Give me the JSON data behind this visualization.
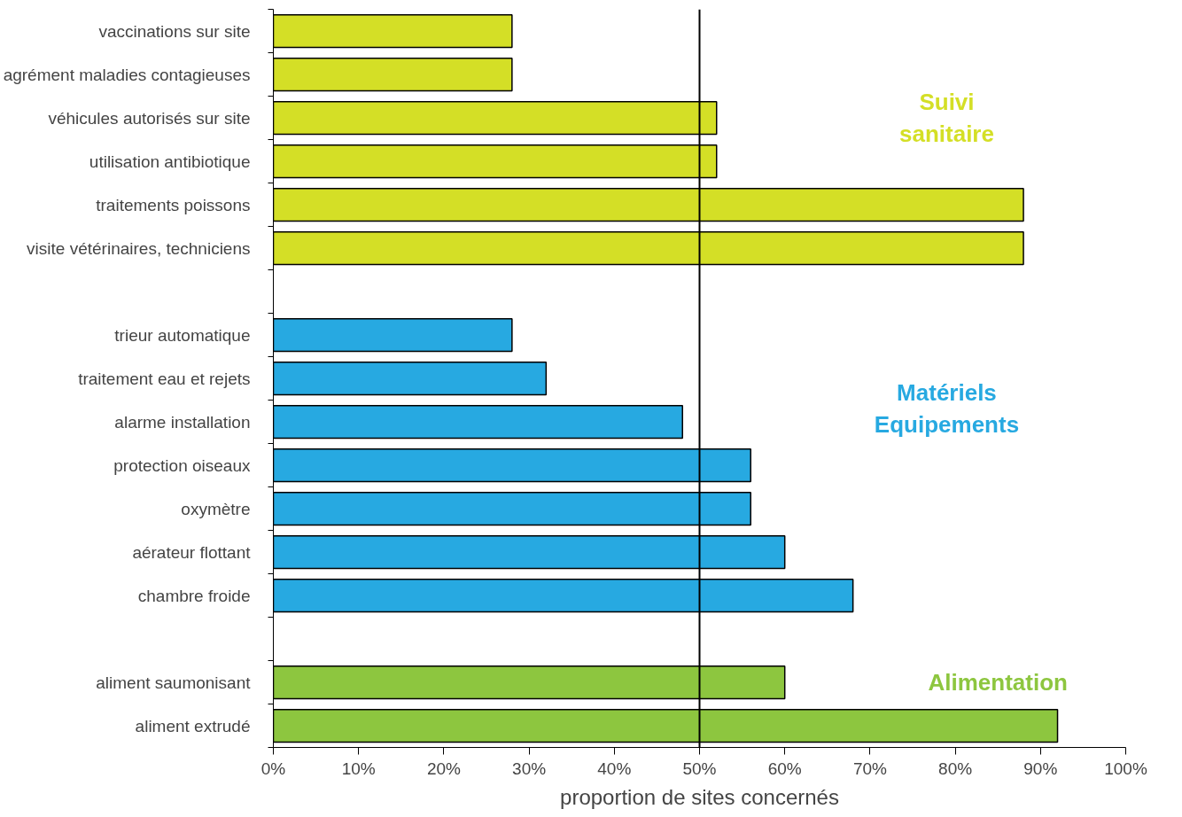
{
  "chart_data": {
    "type": "bar",
    "orientation": "horizontal",
    "xlabel": "proportion de sites concernés",
    "categories": [
      "vaccinations sur site",
      "agrément maladies contagieuses",
      "véhicules autorisés sur site",
      "utilisation antibiotique",
      "traitements poissons",
      "visite vétérinaires, techniciens",
      null,
      "trieur automatique",
      "traitement eau et rejets",
      "alarme installation",
      "protection oiseaux",
      "oxymètre",
      "aérateur flottant",
      "chambre froide",
      null,
      "aliment saumonisant",
      "aliment extrudé"
    ],
    "series": [
      {
        "name": "Suivi sanitaire",
        "color": "#d4df26",
        "values": [
          28,
          28,
          52,
          52,
          88,
          88,
          null,
          null,
          null,
          null,
          null,
          null,
          null,
          null,
          null,
          null,
          null
        ]
      },
      {
        "name": "Matériels Equipements",
        "color": "#27a9e1",
        "values": [
          null,
          null,
          null,
          null,
          null,
          null,
          null,
          28,
          32,
          48,
          56,
          56,
          60,
          68,
          null,
          null,
          null
        ]
      },
      {
        "name": "Alimentation",
        "color": "#8dc63f",
        "values": [
          null,
          null,
          null,
          null,
          null,
          null,
          null,
          null,
          null,
          null,
          null,
          null,
          null,
          null,
          null,
          60,
          92
        ]
      }
    ],
    "xlim": [
      0,
      100
    ],
    "xticks": [
      {
        "value": 0,
        "label": "0%"
      },
      {
        "value": 10,
        "label": "10%"
      },
      {
        "value": 20,
        "label": "20%"
      },
      {
        "value": 30,
        "label": "30%"
      },
      {
        "value": 40,
        "label": "40%"
      },
      {
        "value": 50,
        "label": "50%"
      },
      {
        "value": 60,
        "label": "60%"
      },
      {
        "value": 70,
        "label": "70%"
      },
      {
        "value": 80,
        "label": "80%"
      },
      {
        "value": 90,
        "label": "90%"
      },
      {
        "value": 100,
        "label": "100%"
      }
    ],
    "ref_lines": [
      {
        "axis": "x",
        "value": 50,
        "color": "#000000"
      }
    ],
    "grid": false
  }
}
